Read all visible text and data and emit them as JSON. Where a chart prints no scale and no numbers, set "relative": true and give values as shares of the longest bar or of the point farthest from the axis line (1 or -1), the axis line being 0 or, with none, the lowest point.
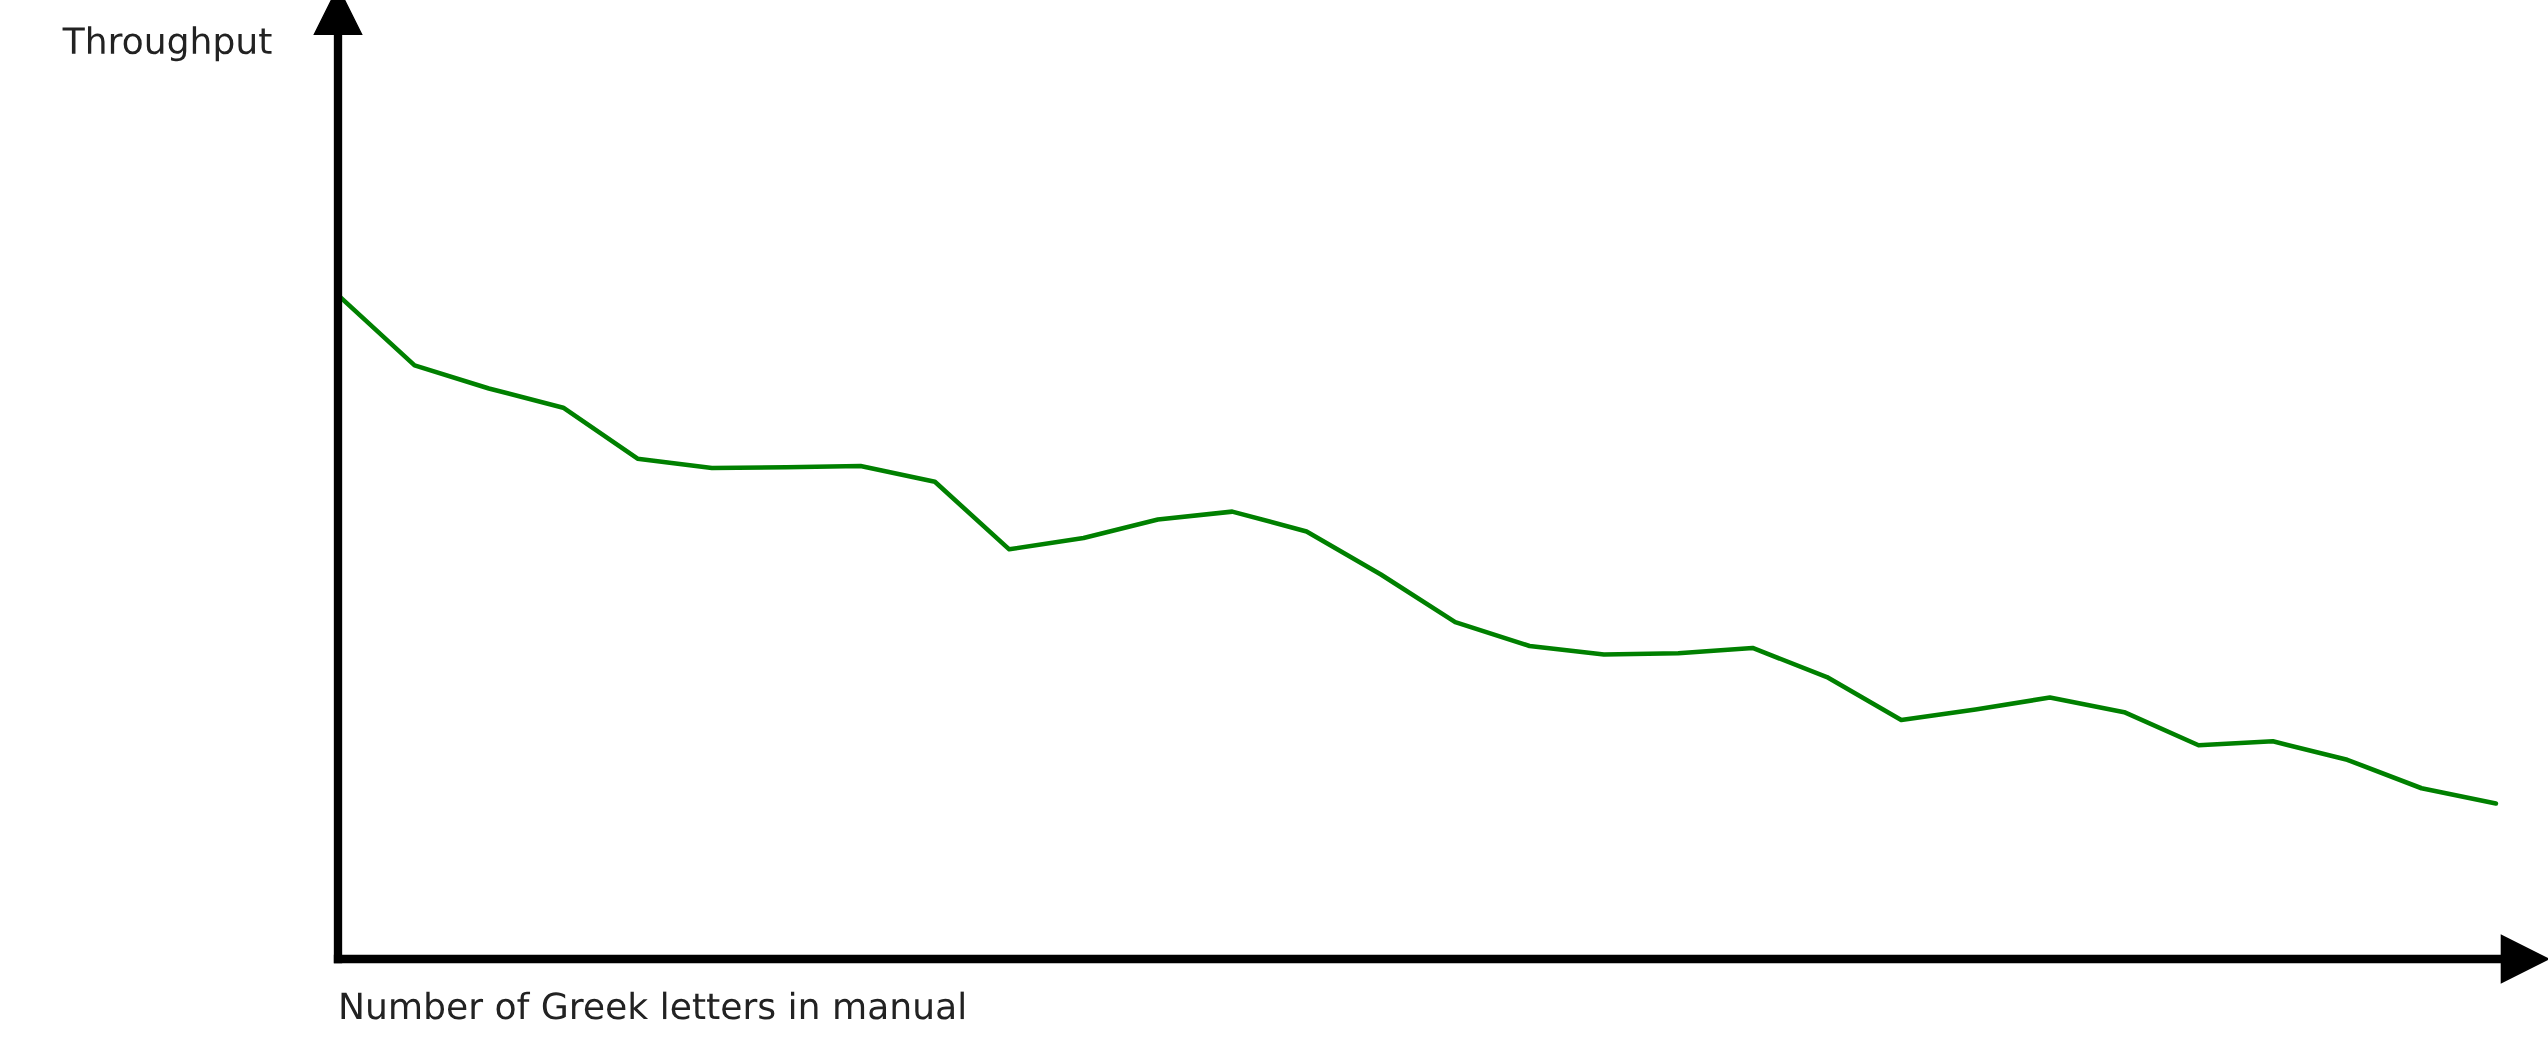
{
  "chart_data": {
    "type": "line",
    "relative": true,
    "xlabel": "Number of Greek letters in manual",
    "annotations": [
      "Throughput"
    ],
    "categories": [
      null,
      null,
      null,
      null,
      null,
      null,
      null,
      null,
      null,
      null,
      null,
      null,
      null,
      null,
      null,
      null,
      null,
      null,
      null,
      null,
      null,
      null,
      null,
      null,
      null,
      null,
      null,
      null,
      null,
      null
    ],
    "series": [
      {
        "color": "#008000",
        "values": [
          1.0,
          0.897,
          0.862,
          0.833,
          0.756,
          0.742,
          0.743,
          0.745,
          0.721,
          0.619,
          0.636,
          0.664,
          0.676,
          0.646,
          0.581,
          0.509,
          0.473,
          0.46,
          0.462,
          0.47,
          0.426,
          0.361,
          0.377,
          0.395,
          0.373,
          0.323,
          0.329,
          0.301,
          0.258,
          0.235
        ]
      }
    ],
    "grid": false,
    "legend": false,
    "marker": "none",
    "line_style": "solid"
  }
}
